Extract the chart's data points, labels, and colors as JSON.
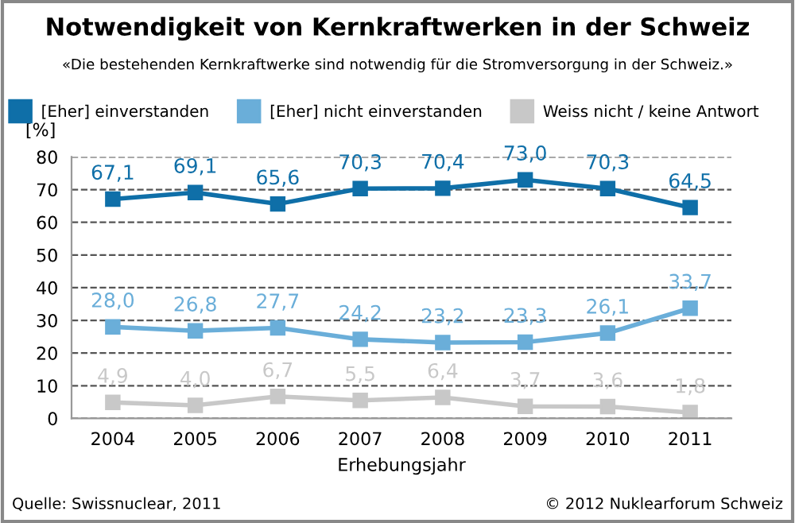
{
  "chart_data": {
    "type": "line",
    "title": "Notwendigkeit von Kernkraftwerken in der Schweiz",
    "subtitle": "«Die bestehenden Kernkraftwerke sind notwendig für die Stromversorgung in der Schweiz.»",
    "xlabel": "Erhebungsjahr",
    "ylabel": "[%]",
    "annotations": [
      "Quelle: Swissnuclear, 2011",
      "© 2012 Nuklearforum Schweiz"
    ],
    "categories": [
      "2004",
      "2005",
      "2006",
      "2007",
      "2008",
      "2009",
      "2010",
      "2011"
    ],
    "series": [
      {
        "name": "[Eher] einverstanden",
        "color": "#0f6fa8",
        "values": [
          67.1,
          69.1,
          65.6,
          70.3,
          70.4,
          73.0,
          70.3,
          64.5
        ],
        "value_labels": [
          "67,1",
          "69,1",
          "65,6",
          "70,3",
          "70,4",
          "73,0",
          "70,3",
          "64,5"
        ]
      },
      {
        "name": "[Eher] nicht einverstanden",
        "color": "#6aaed9",
        "values": [
          28.0,
          26.8,
          27.7,
          24.2,
          23.2,
          23.3,
          26.1,
          33.7
        ],
        "value_labels": [
          "28,0",
          "26,8",
          "27,7",
          "24,2",
          "23,2",
          "23,3",
          "26,1",
          "33,7"
        ]
      },
      {
        "name": "Weiss nicht / keine Antwort",
        "color": "#c8c8c8",
        "values": [
          4.9,
          4.0,
          6.7,
          5.5,
          6.4,
          3.7,
          3.6,
          1.8
        ],
        "value_labels": [
          "4,9",
          "4,0",
          "6,7",
          "5,5",
          "6,4",
          "3,7",
          "3,6",
          "1,8"
        ]
      }
    ],
    "ylim": [
      0,
      80
    ],
    "yticks": [
      0,
      10,
      20,
      30,
      40,
      50,
      60,
      70,
      80
    ],
    "grid": "y",
    "legend": "top",
    "marker": "square",
    "line_style": "solid"
  }
}
